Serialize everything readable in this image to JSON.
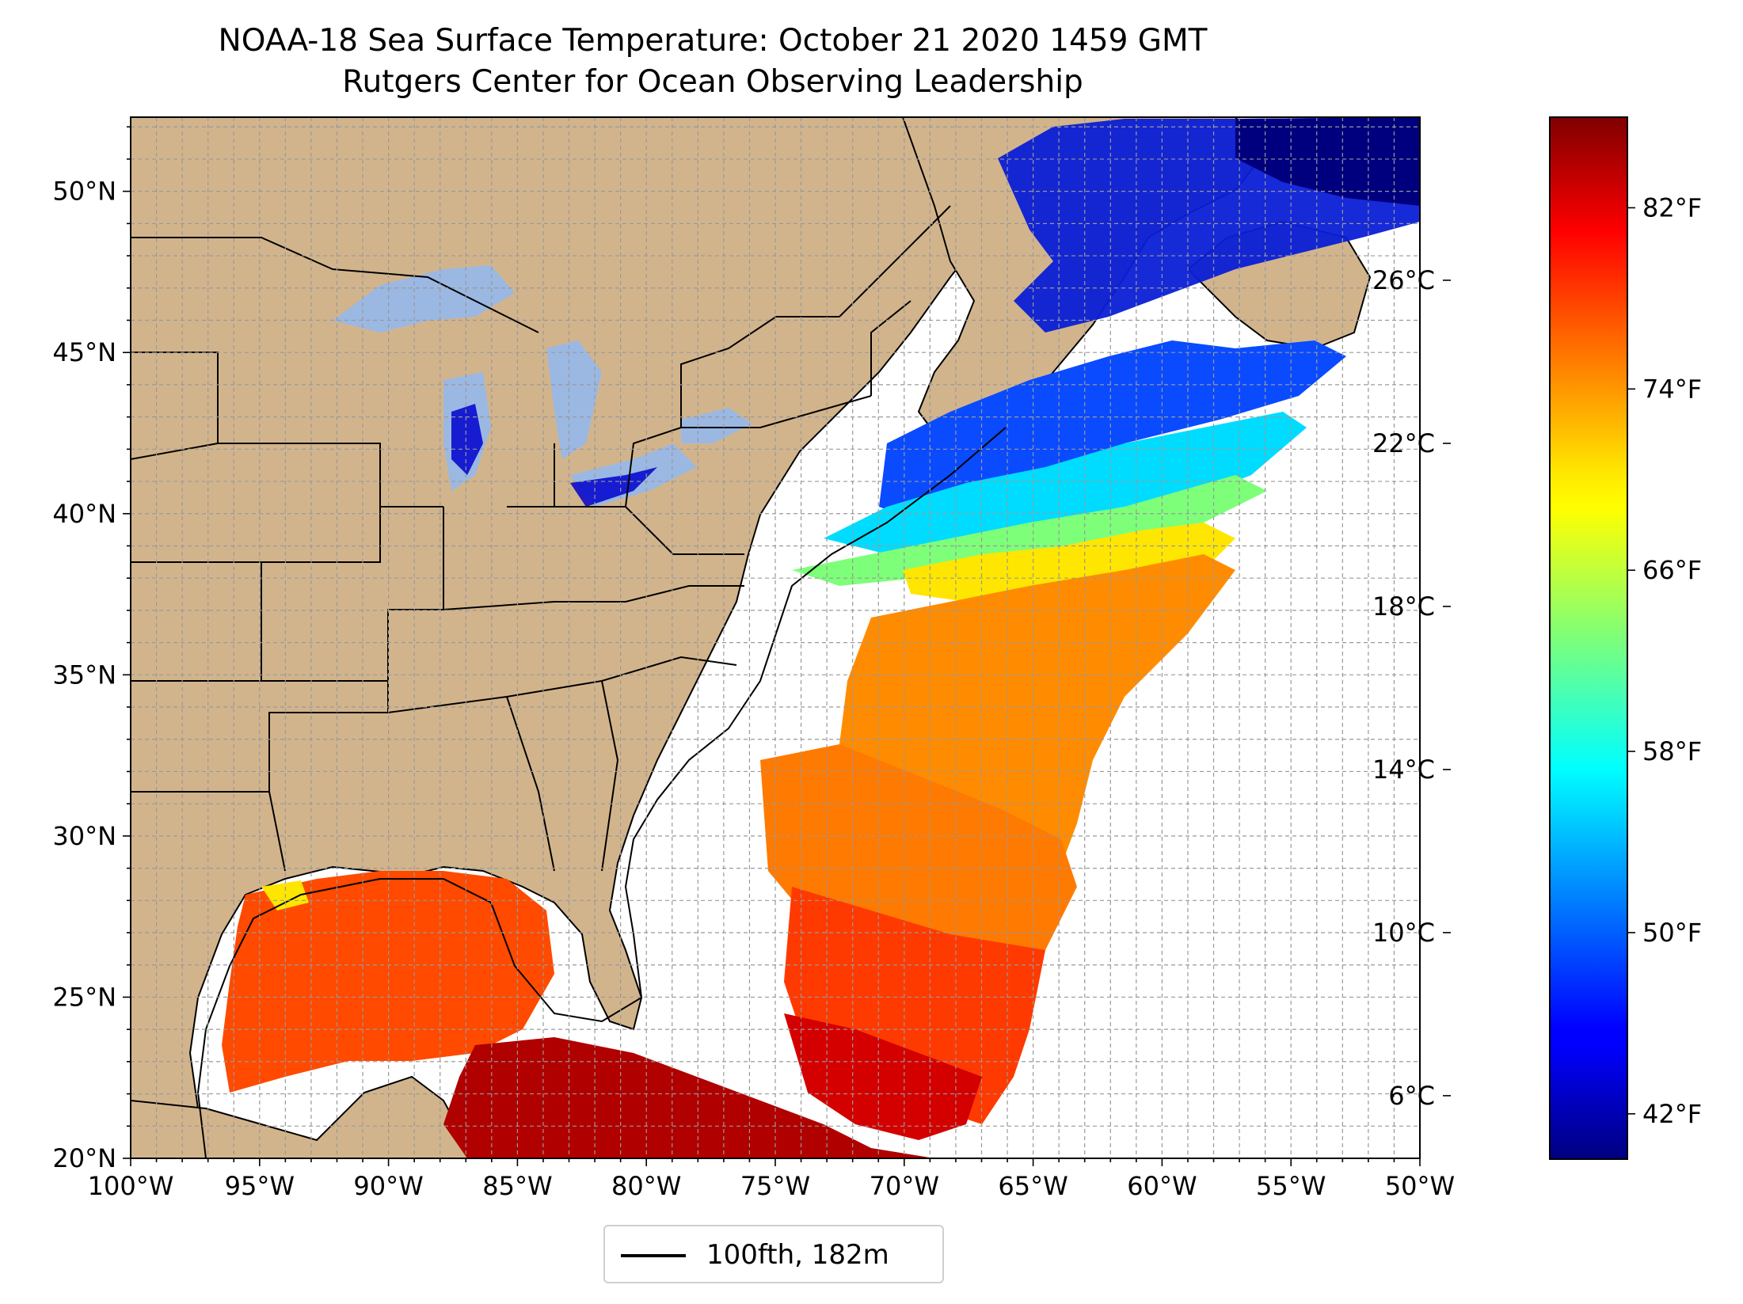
{
  "title": {
    "line1": "NOAA-18 Sea Surface Temperature: October 21 2020 1459 GMT",
    "line2": "Rutgers Center for Ocean Observing Leadership"
  },
  "map": {
    "lon_range": [
      -100,
      -50
    ],
    "lat_range": [
      20,
      52.3
    ],
    "lon_ticks": [
      {
        "value": -100,
        "label": "100°W"
      },
      {
        "value": -95,
        "label": "95°W"
      },
      {
        "value": -90,
        "label": "90°W"
      },
      {
        "value": -85,
        "label": "85°W"
      },
      {
        "value": -80,
        "label": "80°W"
      },
      {
        "value": -75,
        "label": "75°W"
      },
      {
        "value": -70,
        "label": "70°W"
      },
      {
        "value": -65,
        "label": "65°W"
      },
      {
        "value": -60,
        "label": "60°W"
      },
      {
        "value": -55,
        "label": "55°W"
      },
      {
        "value": -50,
        "label": "50°W"
      }
    ],
    "lat_ticks": [
      {
        "value": 20,
        "label": "20°N"
      },
      {
        "value": 25,
        "label": "25°N"
      },
      {
        "value": 30,
        "label": "30°N"
      },
      {
        "value": 35,
        "label": "35°N"
      },
      {
        "value": 40,
        "label": "40°N"
      },
      {
        "value": 45,
        "label": "45°N"
      },
      {
        "value": 50,
        "label": "50°N"
      }
    ],
    "gridlines": "dashed, every 1°",
    "colors": {
      "land": "#d2b48c",
      "lakes": "#9bb8e3",
      "ocean_no_data": "#ffffff",
      "borders": "#000000"
    }
  },
  "colorbar": {
    "colormap": "jet",
    "range_f": [
      40,
      86
    ],
    "fahrenheit_ticks": [
      {
        "value": 82,
        "label": "82°F"
      },
      {
        "value": 74,
        "label": "74°F"
      },
      {
        "value": 66,
        "label": "66°F"
      },
      {
        "value": 58,
        "label": "58°F"
      },
      {
        "value": 50,
        "label": "50°F"
      },
      {
        "value": 42,
        "label": "42°F"
      }
    ],
    "celsius_ticks": [
      {
        "value": 26,
        "label": "26°C"
      },
      {
        "value": 22,
        "label": "22°C"
      },
      {
        "value": 18,
        "label": "18°C"
      },
      {
        "value": 14,
        "label": "14°C"
      },
      {
        "value": 10,
        "label": "10°C"
      },
      {
        "value": 6,
        "label": "6°C"
      }
    ]
  },
  "legend": {
    "entry": "100fth, 182m",
    "line_color": "#000000"
  }
}
